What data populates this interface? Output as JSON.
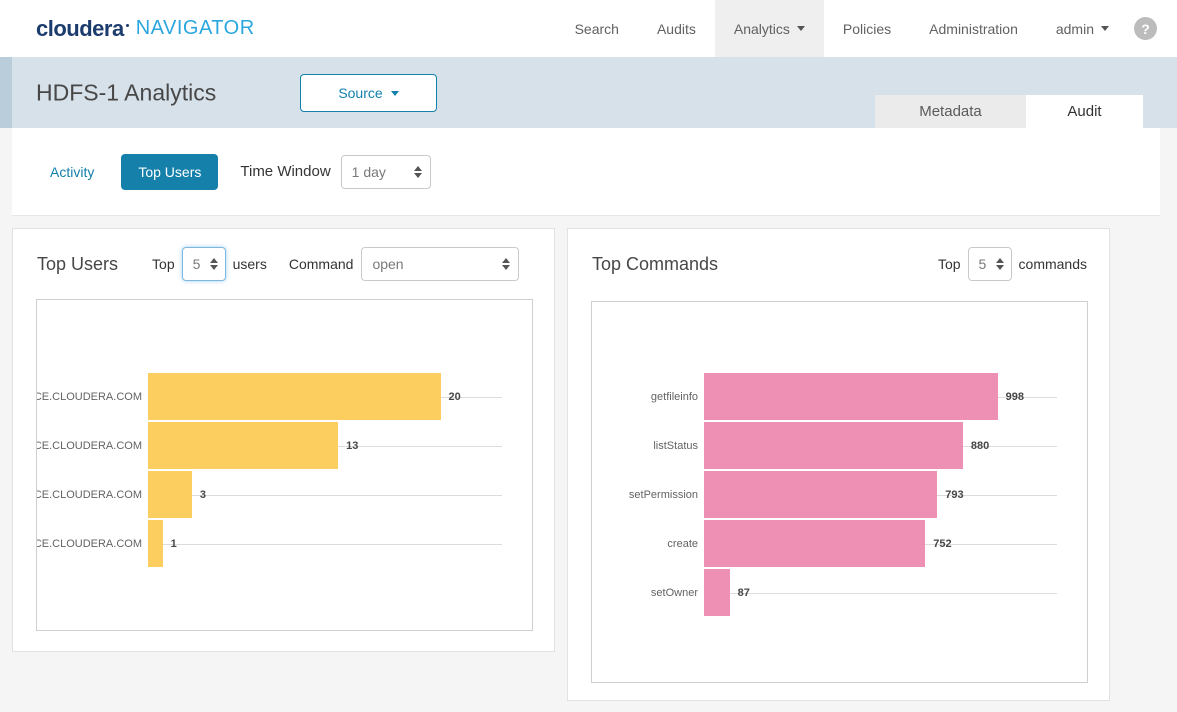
{
  "nav": {
    "brand": "cloudera",
    "product": "NAVIGATOR",
    "items": [
      "Search",
      "Audits",
      "Analytics",
      "Policies",
      "Administration"
    ],
    "active_item": "Analytics",
    "user_label": "admin",
    "help_label": "?"
  },
  "header": {
    "title": "HDFS-1 Analytics",
    "source_button": "Source",
    "tabs": [
      {
        "label": "Metadata",
        "active": false
      },
      {
        "label": "Audit",
        "active": true
      }
    ]
  },
  "filter_bar": {
    "activity_label": "Activity",
    "top_users_label": "Top Users",
    "time_window_label": "Time Window",
    "time_window_value": "1 day"
  },
  "panels": {
    "top_users": {
      "title": "Top Users",
      "top_label": "Top",
      "top_value": "5",
      "unit_label": "users",
      "command_label": "Command",
      "command_value": "open"
    },
    "top_commands": {
      "title": "Top Commands",
      "top_label": "Top",
      "top_value": "5",
      "unit_label": "commands"
    }
  },
  "colors": {
    "accent_blue": "#1380ab",
    "button_teal": "#1580a9",
    "band_blue": "#d6e1ea",
    "bar_yellow": "#fbce5f",
    "bar_pink": "#ee90b4"
  },
  "chart_data": [
    {
      "type": "bar",
      "orientation": "horizontal",
      "title": "Top Users",
      "categories": [
        "CE.CLOUDERA.COM",
        "CE.CLOUDERA.COM",
        "CE.CLOUDERA.COM",
        "CE.CLOUDERA.COM"
      ],
      "values": [
        20,
        13,
        3,
        1
      ],
      "xlim": [
        0,
        24.2
      ],
      "grid": true,
      "value_labels": true,
      "bar_color": "#fbce5f",
      "legend": "none"
    },
    {
      "type": "bar",
      "orientation": "horizontal",
      "title": "Top Commands",
      "categories": [
        "getfileinfo",
        "listStatus",
        "setPermission",
        "create",
        "setOwner"
      ],
      "values": [
        998,
        880,
        793,
        752,
        87
      ],
      "xlim": [
        0,
        1200
      ],
      "grid": true,
      "value_labels": true,
      "bar_color": "#ee90b4",
      "legend": "none"
    }
  ]
}
